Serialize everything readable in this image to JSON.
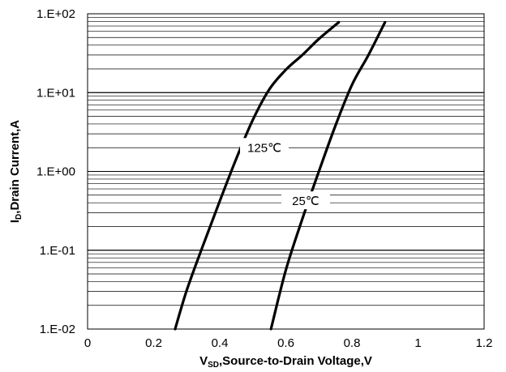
{
  "chart_data": {
    "type": "line",
    "x_axis": {
      "label_main": "V",
      "label_sub": "SD",
      "label_rest": ",Source-to-Drain Voltage,V",
      "range": [
        0,
        1.2
      ],
      "ticks": [
        0,
        0.2,
        0.4,
        0.6,
        0.8,
        1,
        1.2
      ],
      "tick_labels": [
        "0",
        "0.2",
        "0.4",
        "0.6",
        "0.8",
        "1",
        "1.2"
      ]
    },
    "y_axis": {
      "label_main": "I",
      "label_sub": "D",
      "label_rest": ",Drain Current,A",
      "scale": "log",
      "range": [
        0.01,
        100
      ],
      "ticks": [
        0.01,
        0.1,
        1,
        10,
        100
      ],
      "tick_labels": [
        "1.E-02",
        "1.E-01",
        "1.E+00",
        "1.E+01",
        "1.E+02"
      ]
    },
    "grid": {
      "horizontal_minor": true,
      "vertical": false
    },
    "series": [
      {
        "name": "125℃",
        "line_color": "#000000",
        "points": [
          [
            0.265,
            0.01
          ],
          [
            0.3,
            0.031
          ],
          [
            0.35,
            0.117
          ],
          [
            0.4,
            0.42
          ],
          [
            0.45,
            1.45
          ],
          [
            0.5,
            4.5
          ],
          [
            0.55,
            11.0
          ],
          [
            0.6,
            19.5
          ],
          [
            0.65,
            30.0
          ],
          [
            0.7,
            48.0
          ],
          [
            0.76,
            78.0
          ]
        ]
      },
      {
        "name": "25℃",
        "line_color": "#000000",
        "points": [
          [
            0.555,
            0.01
          ],
          [
            0.6,
            0.056
          ],
          [
            0.65,
            0.25
          ],
          [
            0.7,
            1.0
          ],
          [
            0.75,
            3.8
          ],
          [
            0.8,
            12.5
          ],
          [
            0.85,
            30.0
          ],
          [
            0.9,
            78.0
          ]
        ]
      }
    ],
    "annotations": [
      {
        "text": "125℃",
        "x": 0.535,
        "y": 1.95
      },
      {
        "text": "25℃",
        "x": 0.66,
        "y": 0.41
      }
    ]
  }
}
